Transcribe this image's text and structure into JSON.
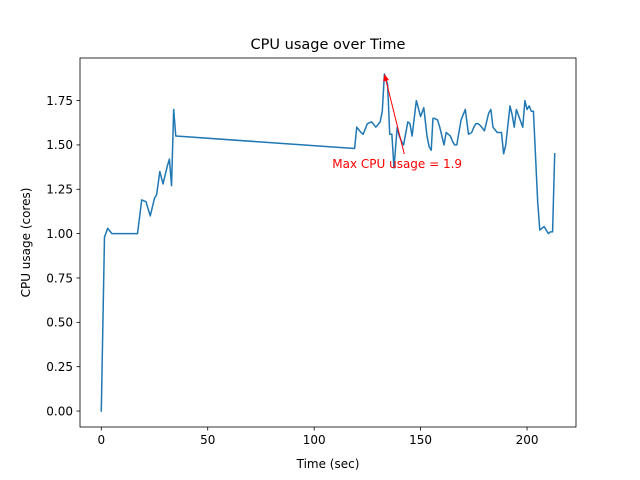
{
  "chart_data": {
    "type": "line",
    "title": "CPU usage over Time",
    "xlabel": "Time (sec)",
    "ylabel": "CPU usage (cores)",
    "xlim": [
      -10,
      223
    ],
    "ylim": [
      -0.09,
      1.99
    ],
    "x_ticks": [
      0,
      50,
      100,
      150,
      200
    ],
    "x_tick_labels": [
      "0",
      "50",
      "100",
      "150",
      "200"
    ],
    "y_ticks": [
      0.0,
      0.25,
      0.5,
      0.75,
      1.0,
      1.25,
      1.5,
      1.75
    ],
    "y_tick_labels": [
      "0.00",
      "0.25",
      "0.50",
      "0.75",
      "1.00",
      "1.25",
      "1.50",
      "1.75"
    ],
    "grid": false,
    "series": [
      {
        "color": "#1f77b4",
        "x": [
          0,
          1.5,
          3,
          5,
          7,
          10,
          13,
          16,
          17,
          19,
          21,
          23,
          25,
          26,
          27.5,
          29,
          31,
          32,
          33,
          34,
          35,
          119,
          120,
          122,
          123,
          125,
          127,
          129,
          131,
          132,
          133,
          134.5,
          135.5,
          136.5,
          137.5,
          139,
          140,
          141,
          142,
          144,
          145,
          146,
          148,
          150,
          151.5,
          153,
          154,
          155,
          155.8,
          156.5,
          158,
          159,
          161,
          162,
          163,
          164,
          165,
          166,
          167,
          169,
          171,
          172.5,
          174,
          175,
          176,
          177,
          178,
          180,
          182,
          183,
          184,
          186,
          188,
          189,
          190,
          192,
          193,
          194,
          195,
          196.5,
          198,
          199,
          200,
          201,
          202,
          203,
          205,
          206,
          208,
          210,
          211,
          212,
          213
        ],
        "y": [
          0.0,
          0.98,
          1.03,
          1.0,
          1.0,
          1.0,
          1.0,
          1.0,
          1.0,
          1.19,
          1.18,
          1.1,
          1.2,
          1.22,
          1.35,
          1.28,
          1.38,
          1.42,
          1.27,
          1.7,
          1.55,
          1.48,
          1.6,
          1.57,
          1.56,
          1.62,
          1.63,
          1.6,
          1.63,
          1.69,
          1.9,
          1.84,
          1.56,
          1.56,
          1.37,
          1.6,
          1.55,
          1.52,
          1.5,
          1.63,
          1.62,
          1.55,
          1.75,
          1.66,
          1.71,
          1.55,
          1.49,
          1.47,
          1.65,
          1.65,
          1.64,
          1.6,
          1.5,
          1.57,
          1.56,
          1.55,
          1.52,
          1.5,
          1.5,
          1.64,
          1.7,
          1.56,
          1.57,
          1.6,
          1.62,
          1.62,
          1.61,
          1.58,
          1.68,
          1.7,
          1.6,
          1.57,
          1.57,
          1.45,
          1.5,
          1.72,
          1.67,
          1.6,
          1.7,
          1.65,
          1.6,
          1.75,
          1.7,
          1.72,
          1.69,
          1.69,
          1.18,
          1.02,
          1.04,
          1.0,
          1.01,
          1.01,
          1.45
        ]
      }
    ],
    "annotation": {
      "text": "Max CPU usage = 1.9",
      "color": "#ff0000",
      "point": [
        133,
        1.9
      ],
      "text_anchor_point": [
        108.5,
        1.37
      ]
    }
  }
}
